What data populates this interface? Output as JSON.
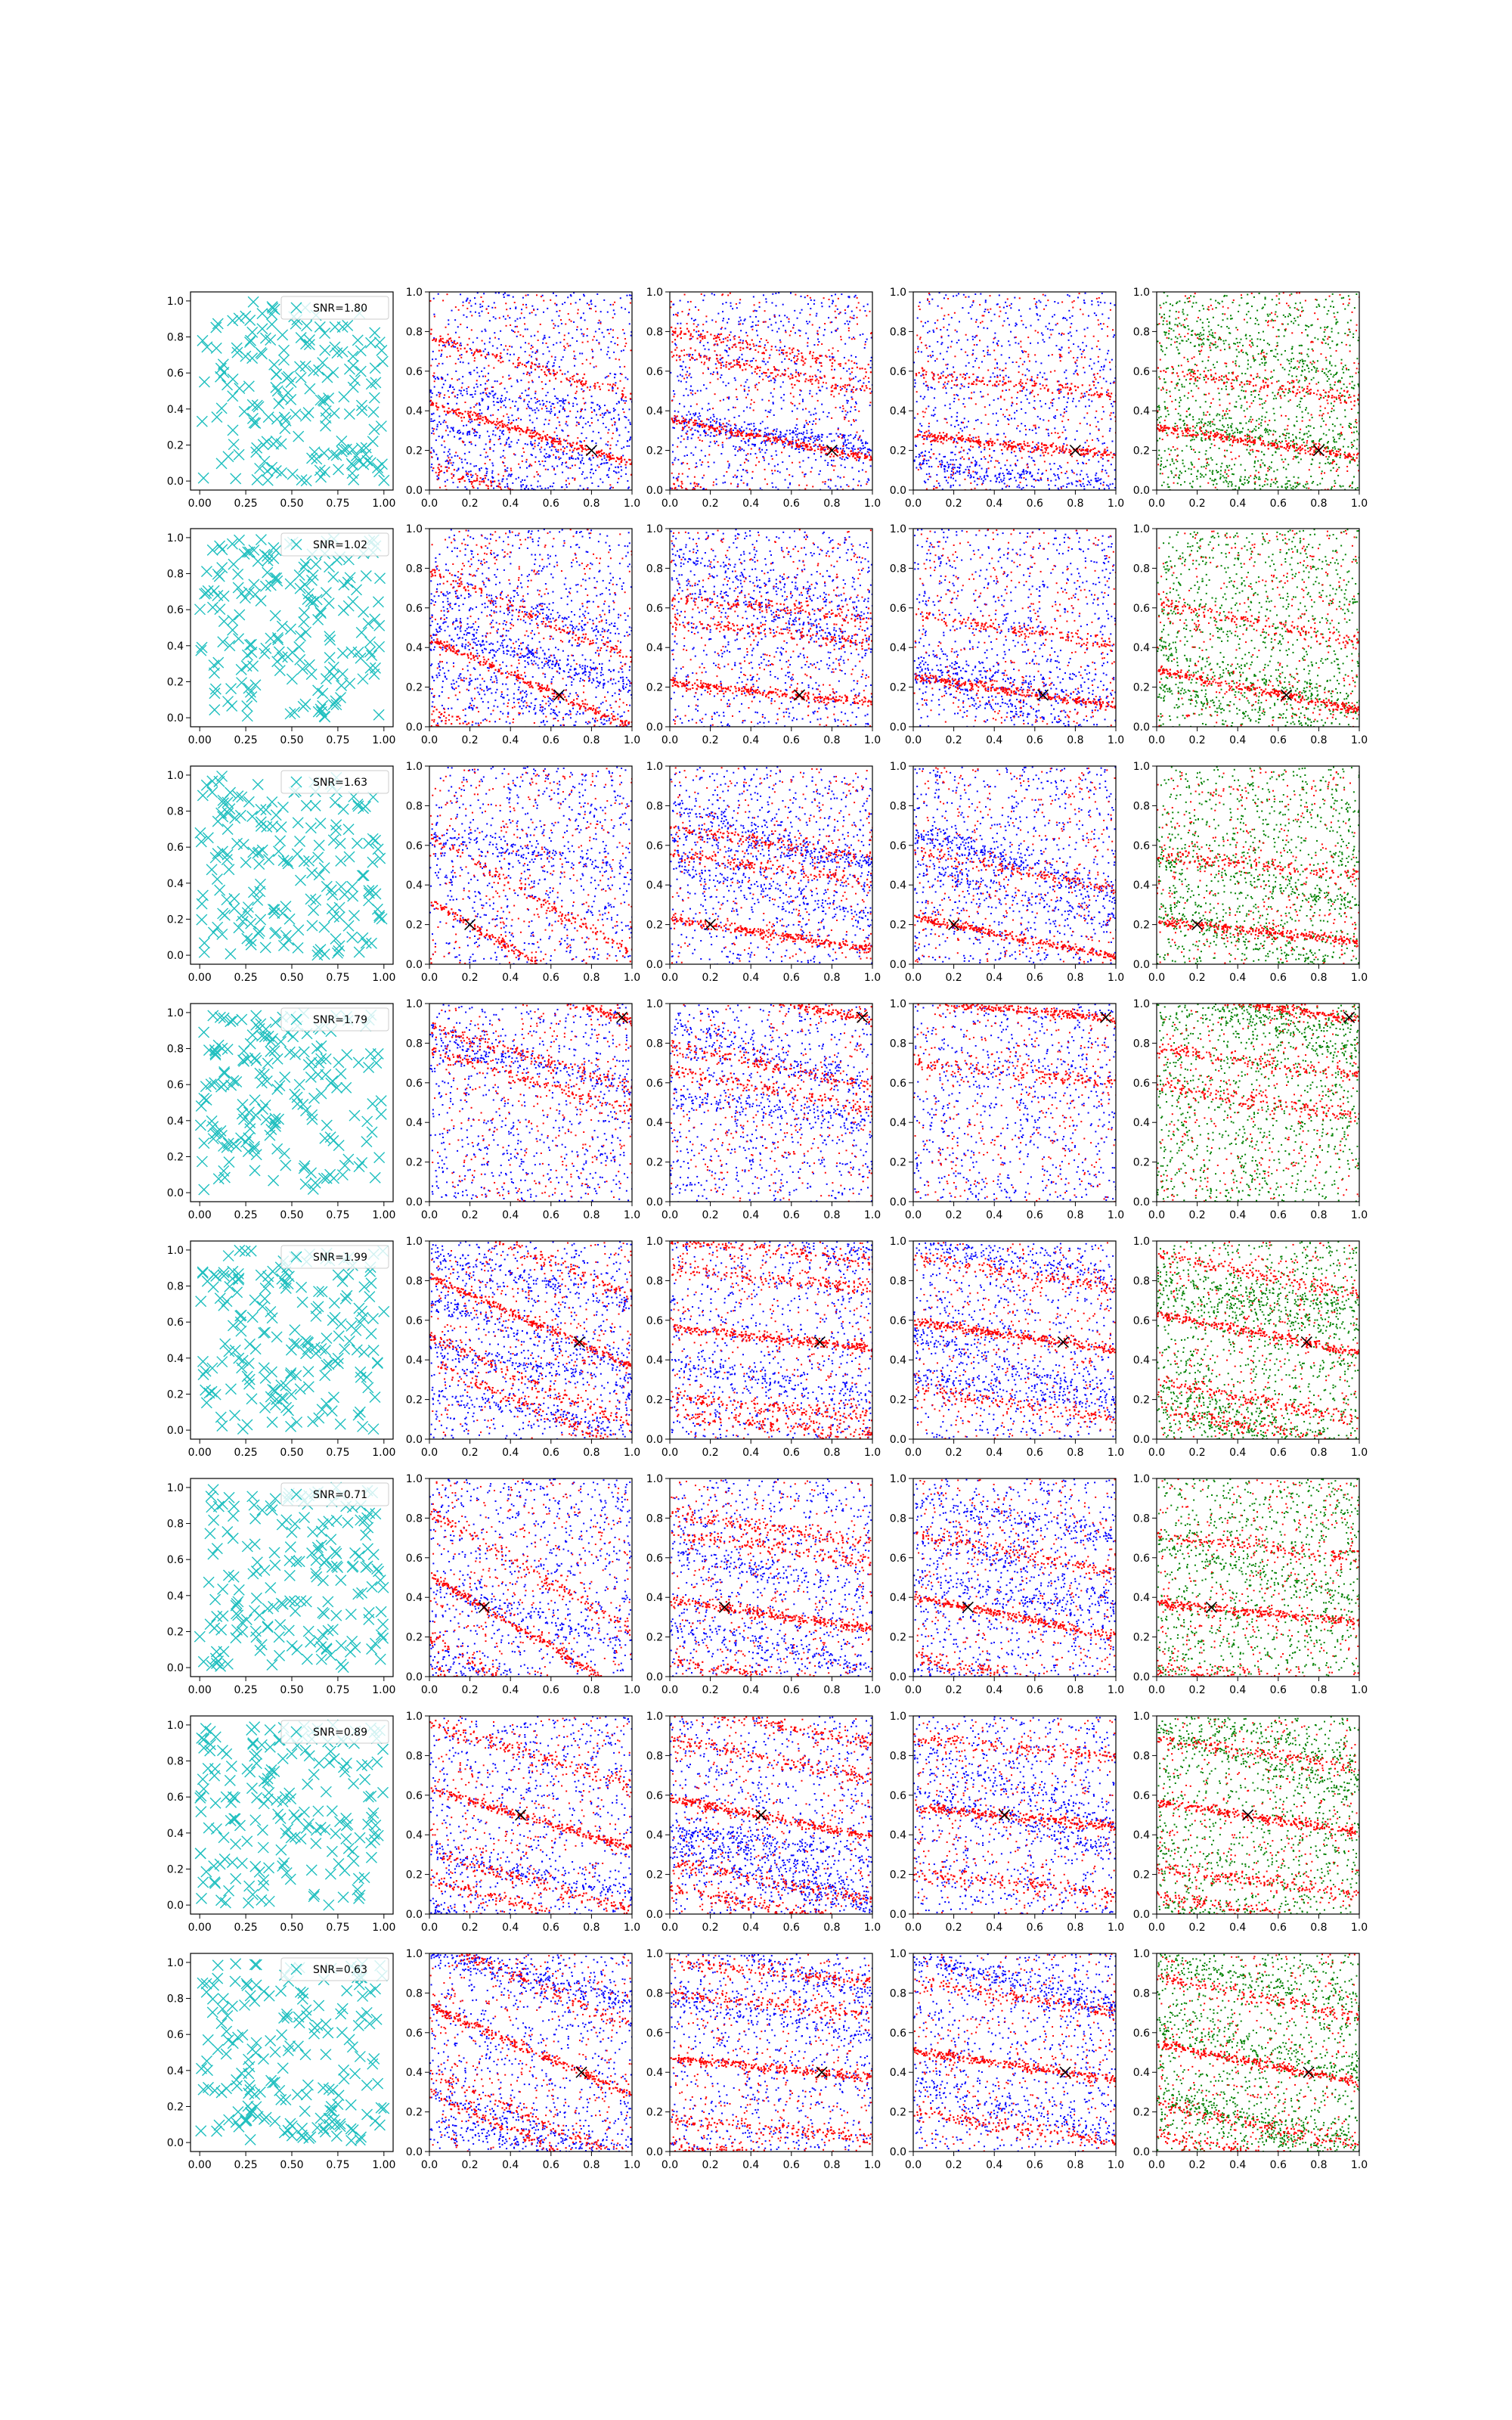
{
  "figure": {
    "rows": 8,
    "cols": 5,
    "x_ticks_first_col": [
      "0.00",
      "0.25",
      "0.50",
      "0.75",
      "1.00"
    ],
    "x_ticks_other_cols": [
      "0.0",
      "0.2",
      "0.4",
      "0.6",
      "0.8",
      "1.0"
    ],
    "y_ticks_first_col": [
      "0.0",
      "0.2",
      "0.4",
      "0.6",
      "0.8",
      "1.0"
    ],
    "y_ticks_other_cols": [
      "0.0",
      "0.2",
      "0.4",
      "0.6",
      "0.8",
      "1.0"
    ],
    "colors": {
      "cross": "#1fbfbf",
      "red": "#ff0000",
      "blue": "#0000ff",
      "green": "#008000",
      "marker": "#000000"
    }
  },
  "chart_data": {
    "type": "scatter",
    "xlim": [
      0,
      1
    ],
    "ylim": [
      0,
      1
    ],
    "grid": false,
    "legend_placement": "top-right",
    "column_types": [
      "cross-scatter",
      "red-blue-scatter",
      "red-blue-scatter",
      "red-blue-scatter",
      "red-green-scatter"
    ],
    "rows": [
      {
        "snr_label": "SNR=1.80",
        "marker": [
          0.8,
          0.2
        ]
      },
      {
        "snr_label": "SNR=1.02",
        "marker": [
          0.64,
          0.16
        ]
      },
      {
        "snr_label": "SNR=1.63",
        "marker": [
          0.2,
          0.2
        ]
      },
      {
        "snr_label": "SNR=1.79",
        "marker": [
          0.95,
          0.93
        ]
      },
      {
        "snr_label": "SNR=1.99",
        "marker": [
          0.74,
          0.49
        ]
      },
      {
        "snr_label": "SNR=0.71",
        "marker": [
          0.27,
          0.35
        ]
      },
      {
        "snr_label": "SNR=0.89",
        "marker": [
          0.45,
          0.5
        ]
      },
      {
        "snr_label": "SNR=0.63",
        "marker": [
          0.75,
          0.4
        ]
      }
    ]
  }
}
